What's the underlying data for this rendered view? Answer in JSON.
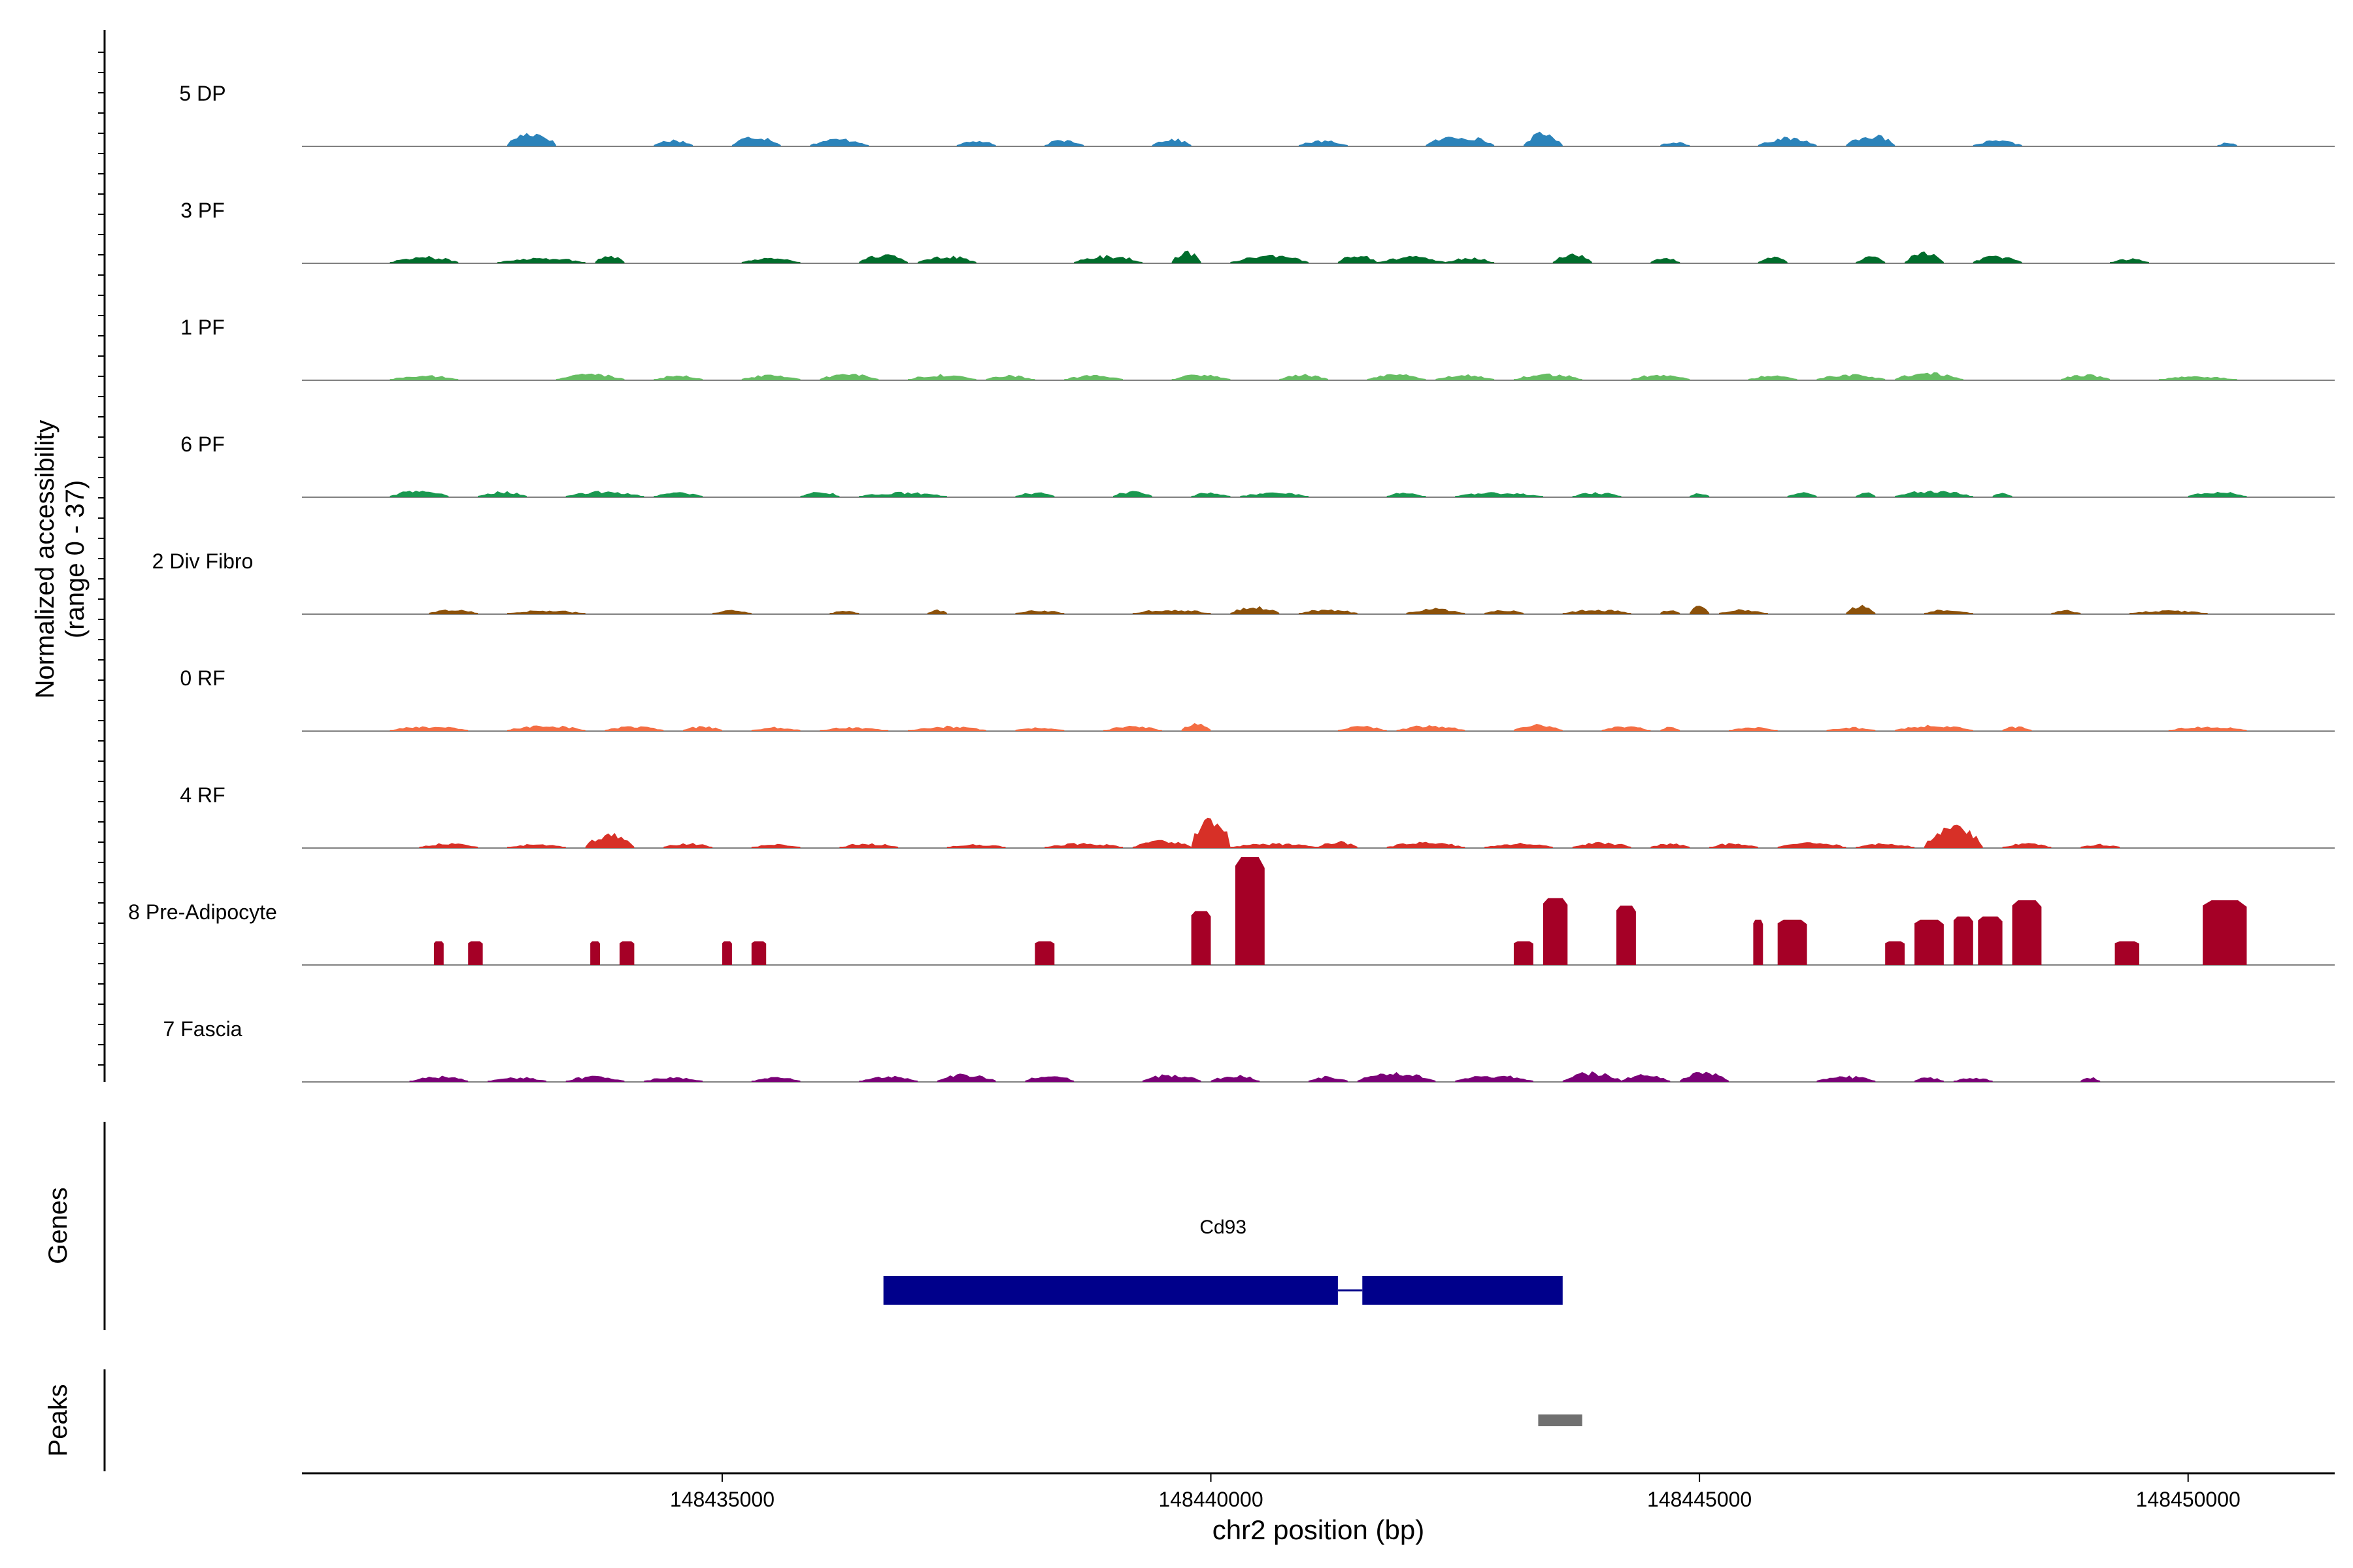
{
  "chart_data": {
    "type": "area",
    "title": "",
    "ylabel_line1": "Normalized accessibility",
    "ylabel_line2": "(range 0 - 37)",
    "y_range": [
      0,
      37
    ],
    "xlabel": "chr2 position (bp)",
    "xlim": [
      148430700,
      148451500
    ],
    "x_ticks": [
      148435000,
      148440000,
      148445000,
      148450000
    ],
    "x_tick_labels": [
      "148435000",
      "148440000",
      "148445000",
      "148450000"
    ],
    "tracks": [
      {
        "name": "5 DP",
        "color": "#2B83BA",
        "peaks": [
          [
            148432800,
            148433300,
            0.15
          ],
          [
            148434300,
            148434700,
            0.07
          ],
          [
            148435100,
            148435600,
            0.11
          ],
          [
            148435900,
            148436500,
            0.08
          ],
          [
            148437400,
            148437800,
            0.06
          ],
          [
            148438300,
            148438700,
            0.07
          ],
          [
            148439400,
            148439800,
            0.08
          ],
          [
            148440900,
            148441400,
            0.06
          ],
          [
            148442200,
            148442900,
            0.11
          ],
          [
            148443200,
            148443600,
            0.14
          ],
          [
            148444600,
            148444900,
            0.05
          ],
          [
            148445600,
            148446200,
            0.09
          ],
          [
            148446500,
            148447000,
            0.12
          ],
          [
            148447800,
            148448300,
            0.06
          ],
          [
            148450300,
            148450500,
            0.04
          ]
        ]
      },
      {
        "name": "3 PF",
        "color": "#006D2C",
        "peaks": [
          [
            148431600,
            148432300,
            0.07
          ],
          [
            148432700,
            148433600,
            0.06
          ],
          [
            148433700,
            148434000,
            0.09
          ],
          [
            148435200,
            148435800,
            0.06
          ],
          [
            148436400,
            148436900,
            0.09
          ],
          [
            148437000,
            148437600,
            0.08
          ],
          [
            148438600,
            148439300,
            0.08
          ],
          [
            148439600,
            148439900,
            0.12
          ],
          [
            148440200,
            148441000,
            0.08
          ],
          [
            148441300,
            148441700,
            0.1
          ],
          [
            148441700,
            148442400,
            0.07
          ],
          [
            148442400,
            148442900,
            0.06
          ],
          [
            148443500,
            148443900,
            0.1
          ],
          [
            148444500,
            148444800,
            0.06
          ],
          [
            148445600,
            148445900,
            0.07
          ],
          [
            148446600,
            148446900,
            0.07
          ],
          [
            148447100,
            148447500,
            0.11
          ],
          [
            148447800,
            148448300,
            0.08
          ],
          [
            148449200,
            148449600,
            0.05
          ]
        ]
      },
      {
        "name": "1 PF",
        "color": "#66BD63",
        "peaks": [
          [
            148431600,
            148432300,
            0.05
          ],
          [
            148433300,
            148434000,
            0.07
          ],
          [
            148434300,
            148434800,
            0.05
          ],
          [
            148435200,
            148435800,
            0.06
          ],
          [
            148436000,
            148436600,
            0.07
          ],
          [
            148436900,
            148437600,
            0.06
          ],
          [
            148437700,
            148438200,
            0.05
          ],
          [
            148438500,
            148439100,
            0.05
          ],
          [
            148439600,
            148440200,
            0.06
          ],
          [
            148440700,
            148441200,
            0.06
          ],
          [
            148441600,
            148442200,
            0.06
          ],
          [
            148442300,
            148442900,
            0.06
          ],
          [
            148443100,
            148443800,
            0.07
          ],
          [
            148444300,
            148444900,
            0.06
          ],
          [
            148445500,
            148446000,
            0.05
          ],
          [
            148446200,
            148446900,
            0.06
          ],
          [
            148447000,
            148447700,
            0.08
          ],
          [
            148448700,
            148449200,
            0.06
          ],
          [
            148449700,
            148450500,
            0.04
          ]
        ]
      },
      {
        "name": "6 PF",
        "color": "#1A9850",
        "peaks": [
          [
            148431600,
            148432200,
            0.07
          ],
          [
            148432500,
            148433000,
            0.06
          ],
          [
            148433400,
            148434200,
            0.06
          ],
          [
            148434300,
            148434800,
            0.05
          ],
          [
            148435800,
            148436200,
            0.06
          ],
          [
            148436400,
            148437300,
            0.05
          ],
          [
            148438000,
            148438400,
            0.05
          ],
          [
            148439000,
            148439400,
            0.06
          ],
          [
            148439800,
            148440200,
            0.05
          ],
          [
            148440300,
            148441000,
            0.05
          ],
          [
            148441800,
            148442200,
            0.05
          ],
          [
            148442500,
            148443400,
            0.05
          ],
          [
            148443700,
            148444200,
            0.05
          ],
          [
            148444900,
            148445100,
            0.05
          ],
          [
            148445900,
            148446200,
            0.05
          ],
          [
            148446600,
            148446800,
            0.05
          ],
          [
            148447000,
            148447800,
            0.07
          ],
          [
            148448000,
            148448200,
            0.05
          ],
          [
            148450000,
            148450600,
            0.06
          ]
        ]
      },
      {
        "name": "2 Div Fibro",
        "color": "#8C510A",
        "peaks": [
          [
            148432000,
            148432500,
            0.05
          ],
          [
            148432800,
            148433600,
            0.04
          ],
          [
            148434900,
            148435300,
            0.04
          ],
          [
            148436100,
            148436400,
            0.04
          ],
          [
            148437100,
            148437300,
            0.05
          ],
          [
            148438000,
            148438500,
            0.04
          ],
          [
            148439200,
            148440000,
            0.05
          ],
          [
            148440200,
            148440700,
            0.08
          ],
          [
            148440900,
            148441500,
            0.05
          ],
          [
            148442000,
            148442600,
            0.06
          ],
          [
            148442800,
            148443200,
            0.05
          ],
          [
            148443600,
            148444300,
            0.05
          ],
          [
            148444600,
            148444800,
            0.05
          ],
          [
            148444900,
            148445100,
            0.1
          ],
          [
            148445200,
            148445700,
            0.05
          ],
          [
            148446500,
            148446800,
            0.09
          ],
          [
            148447300,
            148447800,
            0.05
          ],
          [
            148448600,
            148448900,
            0.04
          ],
          [
            148449400,
            148450200,
            0.04
          ]
        ]
      },
      {
        "name": "0 RF",
        "color": "#F46D43",
        "peaks": [
          [
            148431600,
            148432400,
            0.05
          ],
          [
            148432800,
            148433600,
            0.06
          ],
          [
            148433800,
            148434400,
            0.05
          ],
          [
            148434600,
            148435000,
            0.05
          ],
          [
            148435300,
            148435800,
            0.04
          ],
          [
            148436000,
            148436700,
            0.04
          ],
          [
            148436900,
            148437700,
            0.05
          ],
          [
            148438000,
            148438500,
            0.04
          ],
          [
            148438900,
            148439500,
            0.05
          ],
          [
            148439700,
            148440000,
            0.08
          ],
          [
            148441300,
            148441800,
            0.05
          ],
          [
            148441900,
            148442600,
            0.06
          ],
          [
            148443100,
            148443600,
            0.07
          ],
          [
            148444000,
            148444500,
            0.05
          ],
          [
            148444600,
            148444800,
            0.05
          ],
          [
            148445300,
            148445800,
            0.04
          ],
          [
            148446300,
            148446800,
            0.04
          ],
          [
            148447000,
            148447800,
            0.06
          ],
          [
            148448100,
            148448400,
            0.05
          ],
          [
            148449800,
            148450600,
            0.05
          ]
        ]
      },
      {
        "name": "4 RF",
        "color": "#D73027",
        "peaks": [
          [
            148431900,
            148432500,
            0.05
          ],
          [
            148432800,
            148433400,
            0.04
          ],
          [
            148433600,
            148434100,
            0.15
          ],
          [
            148434400,
            148434900,
            0.05
          ],
          [
            148435300,
            148435800,
            0.04
          ],
          [
            148436200,
            148436800,
            0.05
          ],
          [
            148437300,
            148437900,
            0.04
          ],
          [
            148438300,
            148439100,
            0.05
          ],
          [
            148439200,
            148439800,
            0.08
          ],
          [
            148439800,
            148440200,
            0.35
          ],
          [
            148440200,
            148441100,
            0.05
          ],
          [
            148441100,
            148441500,
            0.07
          ],
          [
            148441800,
            148442600,
            0.06
          ],
          [
            148442800,
            148443500,
            0.05
          ],
          [
            148443700,
            148444300,
            0.06
          ],
          [
            148444500,
            148444900,
            0.05
          ],
          [
            148445100,
            148445600,
            0.05
          ],
          [
            148445800,
            148446500,
            0.06
          ],
          [
            148446600,
            148447200,
            0.05
          ],
          [
            148447300,
            148447900,
            0.22
          ],
          [
            148448100,
            148448600,
            0.05
          ],
          [
            148448900,
            148449300,
            0.04
          ]
        ]
      },
      {
        "name": "8 Pre-Adipocyte",
        "color": "#A50026",
        "peaks": [
          [
            148432050,
            148432150,
            0.22
          ],
          [
            148432400,
            148432550,
            0.22
          ],
          [
            148433650,
            148433750,
            0.22
          ],
          [
            148433950,
            148434100,
            0.22
          ],
          [
            148435000,
            148435100,
            0.22
          ],
          [
            148435300,
            148435450,
            0.22
          ],
          [
            148438200,
            148438400,
            0.22
          ],
          [
            148439800,
            148440000,
            0.5
          ],
          [
            148440250,
            148440550,
            1.0
          ],
          [
            148443100,
            148443300,
            0.22
          ],
          [
            148443400,
            148443650,
            0.62
          ],
          [
            148444150,
            148444350,
            0.55
          ],
          [
            148445550,
            148445650,
            0.42
          ],
          [
            148445800,
            148446100,
            0.42
          ],
          [
            148446900,
            148447100,
            0.22
          ],
          [
            148447200,
            148447500,
            0.42
          ],
          [
            148447600,
            148447800,
            0.45
          ],
          [
            148447850,
            148448100,
            0.45
          ],
          [
            148448200,
            148448500,
            0.6
          ],
          [
            148449250,
            148449500,
            0.22
          ],
          [
            148450150,
            148450600,
            0.6
          ]
        ]
      },
      {
        "name": "7 Fascia",
        "color": "#7A0177",
        "peaks": [
          [
            148431800,
            148432400,
            0.06
          ],
          [
            148432600,
            148433200,
            0.05
          ],
          [
            148433400,
            148434000,
            0.06
          ],
          [
            148434200,
            148434800,
            0.05
          ],
          [
            148435300,
            148435800,
            0.05
          ],
          [
            148436400,
            148437000,
            0.06
          ],
          [
            148437200,
            148437800,
            0.08
          ],
          [
            148438100,
            148438600,
            0.07
          ],
          [
            148439300,
            148439900,
            0.08
          ],
          [
            148440000,
            148440500,
            0.07
          ],
          [
            148441000,
            148441400,
            0.06
          ],
          [
            148441500,
            148442300,
            0.1
          ],
          [
            148442500,
            148443300,
            0.07
          ],
          [
            148443600,
            148444200,
            0.1
          ],
          [
            148444200,
            148444700,
            0.08
          ],
          [
            148444800,
            148445300,
            0.1
          ],
          [
            148446200,
            148446800,
            0.06
          ],
          [
            148447200,
            148447500,
            0.05
          ],
          [
            148447600,
            148448000,
            0.05
          ],
          [
            148448900,
            148449100,
            0.05
          ]
        ]
      }
    ],
    "genes_label": "Genes",
    "gene": {
      "name": "Cd93",
      "color": "#00008B",
      "exons": [
        [
          148436650,
          148441300
        ],
        [
          148441550,
          148443600
        ]
      ]
    },
    "peaks_label": "Peaks",
    "peak_regions": [
      {
        "start": 148443350,
        "end": 148443800,
        "color": "#707070"
      }
    ]
  }
}
